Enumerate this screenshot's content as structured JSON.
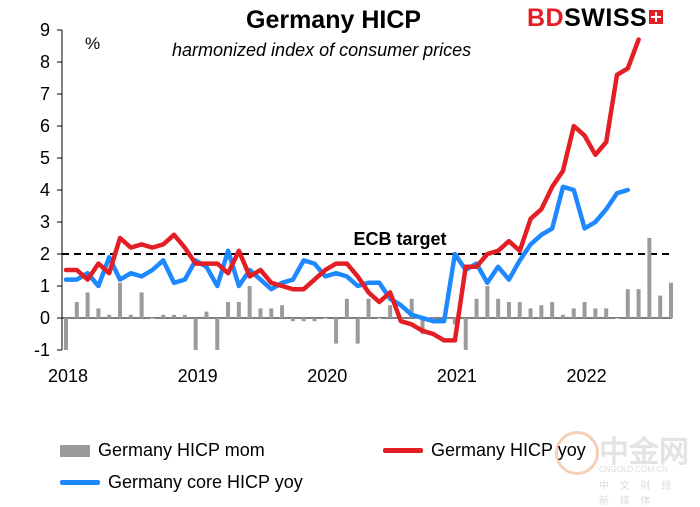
{
  "chart_data": {
    "type": "bar+line",
    "title": "Germany HICP",
    "subtitle": "harmonized index of consumer prices",
    "y_unit": "%",
    "ylim": [
      -1,
      9
    ],
    "y_ticks": [
      "-1",
      "0",
      "1",
      "2",
      "3",
      "4",
      "5",
      "6",
      "7",
      "8",
      "9"
    ],
    "x_ticks": [
      "2018",
      "2019",
      "2020",
      "2021",
      "2022"
    ],
    "grid": false,
    "legend_position": "bottom",
    "reference_line": {
      "label": "ECB target",
      "value": 2
    },
    "series": [
      {
        "name": "Germany HICP mom",
        "kind": "bar",
        "color": "#9b9b9b",
        "values": [
          -1.0,
          0.5,
          0.8,
          0.3,
          0.1,
          1.1,
          0.1,
          0.8,
          0.0,
          0.1,
          0.1,
          0.1,
          -1.0,
          0.2,
          -1.0,
          0.5,
          0.5,
          1.0,
          0.3,
          0.3,
          0.4,
          -0.1,
          -0.1,
          -0.1,
          0.0,
          -0.8,
          0.6,
          -0.8,
          0.6,
          0.0,
          0.4,
          0.0,
          0.6,
          -0.5,
          -0.1,
          -0.1,
          -0.2,
          -1.0,
          0.6,
          1.0,
          0.6,
          0.5,
          0.5,
          0.3,
          0.4,
          0.5,
          0.1,
          0.3,
          0.5,
          0.3,
          0.3,
          0.0,
          0.9,
          0.9,
          2.5,
          0.7,
          1.1
        ]
      },
      {
        "name": "Germany HICP yoy",
        "kind": "line",
        "color": "#e31e24",
        "values": [
          1.5,
          1.5,
          1.2,
          1.7,
          1.4,
          2.5,
          2.2,
          2.3,
          2.2,
          2.3,
          2.6,
          2.2,
          1.7,
          1.7,
          1.7,
          1.4,
          2.1,
          1.3,
          1.5,
          1.1,
          1.0,
          0.9,
          0.9,
          1.2,
          1.5,
          1.7,
          1.7,
          1.3,
          0.8,
          0.5,
          0.8,
          -0.1,
          -0.2,
          -0.4,
          -0.5,
          -0.7,
          -0.7,
          1.6,
          1.6,
          2.0,
          2.1,
          2.4,
          2.1,
          3.1,
          3.4,
          4.1,
          4.6,
          6.0,
          5.7,
          5.1,
          5.5,
          7.6,
          7.8,
          8.7
        ]
      },
      {
        "name": "Germany core HICP yoy",
        "kind": "line",
        "color": "#1e88ff",
        "values": [
          1.2,
          1.2,
          1.4,
          1.0,
          1.9,
          1.2,
          1.4,
          1.3,
          1.5,
          1.8,
          1.1,
          1.2,
          1.8,
          1.6,
          1.0,
          2.1,
          1.0,
          1.5,
          1.2,
          0.9,
          1.1,
          1.2,
          1.8,
          1.7,
          1.3,
          1.4,
          1.3,
          1.0,
          1.1,
          1.1,
          0.6,
          0.4,
          0.1,
          0.0,
          -0.1,
          -0.1,
          2.0,
          1.5,
          1.7,
          1.1,
          1.6,
          1.2,
          1.8,
          2.3,
          2.6,
          2.8,
          4.1,
          4.0,
          2.8,
          3.0,
          3.4,
          3.9,
          4.0
        ]
      }
    ]
  },
  "brand": {
    "bd": "BD",
    "swiss": "SWISS"
  },
  "watermark": {
    "main": "中金网",
    "site": "CNGOLD.COM.CN",
    "sub": "中 文 财 经 新 媒 体"
  }
}
